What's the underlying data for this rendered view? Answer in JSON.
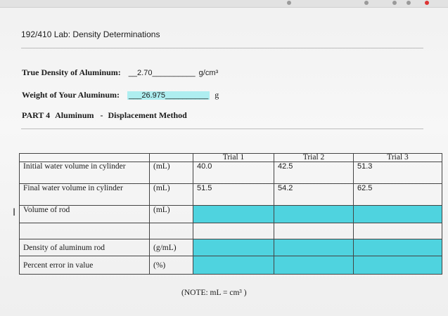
{
  "title": "192/410 Lab: Density Determinations",
  "true_density": {
    "label": "True Density of Aluminum:",
    "blank_left": "__",
    "value": "2.70",
    "blank_right": "__________",
    "unit": "g/cm³"
  },
  "weight": {
    "label": "Weight of Your Aluminum:",
    "blank_left": "___",
    "value": "26.975",
    "blank_right": "__________",
    "unit": "g"
  },
  "part": {
    "number": "PART 4",
    "name": "Aluminum",
    "separator": "-",
    "method": "Displacement Method"
  },
  "table": {
    "headers": [
      "",
      "",
      "Trial 1",
      "Trial 2",
      "Trial 3"
    ],
    "rows": [
      {
        "label": "Initial water volume in cylinder",
        "unit": "(mL)",
        "values": [
          "40.0",
          "42.5",
          "51.3"
        ]
      },
      {
        "label": "Final water volume in cylinder",
        "unit": "(mL)",
        "values": [
          "51.5",
          "54.2",
          "62.5"
        ]
      },
      {
        "label": "Volume of rod",
        "unit": "(mL)",
        "values": [
          "",
          "",
          ""
        ]
      },
      {
        "label": "",
        "unit": "",
        "values": [
          "",
          "",
          ""
        ]
      },
      {
        "label": "Density of aluminum rod",
        "unit": "(g/mL)",
        "values": [
          "",
          "",
          ""
        ]
      },
      {
        "label": "Percent error in value",
        "unit": "(%)",
        "values": [
          "",
          "",
          ""
        ]
      }
    ]
  },
  "note": "(NOTE:  mL = cm³  )",
  "colors": {
    "highlight": "#aeeef0",
    "answer_cells": "#4fd3df"
  }
}
